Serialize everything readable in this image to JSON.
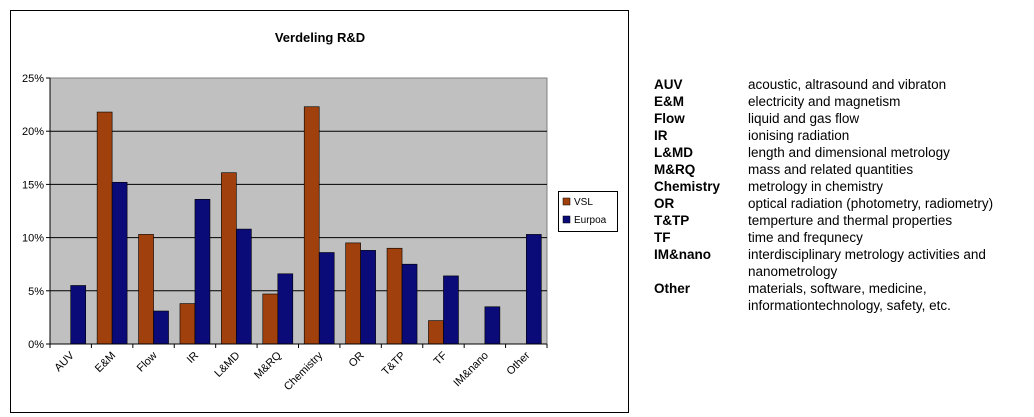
{
  "chart_data": {
    "type": "bar",
    "title": "Verdeling R&D",
    "categories": [
      "AUV",
      "E&M",
      "Flow",
      "IR",
      "L&MD",
      "M&RQ",
      "Chemistry",
      "OR",
      "T&TP",
      "TF",
      "IM&nano",
      "Other"
    ],
    "series": [
      {
        "name": "VSL",
        "color": "#a0400c",
        "values": [
          0,
          21.8,
          10.3,
          3.8,
          16.1,
          4.7,
          22.3,
          9.5,
          9.0,
          2.2,
          0,
          0
        ]
      },
      {
        "name": "Eurpoa",
        "color": "#0a0a78",
        "values": [
          5.5,
          15.2,
          3.1,
          13.6,
          10.8,
          6.6,
          8.6,
          8.8,
          7.5,
          6.4,
          3.5,
          10.3
        ]
      }
    ],
    "ylim": [
      0,
      25
    ],
    "yticks": [
      0,
      5,
      10,
      15,
      20,
      25
    ],
    "ytick_format": "percent",
    "grid": true,
    "plot_background": "#c0c0c0",
    "legend_position": "right"
  },
  "glossary": [
    {
      "abbr": "AUV",
      "desc": "acoustic, altrasound and vibraton"
    },
    {
      "abbr": "E&M",
      "desc": "electricity and magnetism"
    },
    {
      "abbr": "Flow",
      "desc": "liquid and gas flow"
    },
    {
      "abbr": "IR",
      "desc": "ionising radiation"
    },
    {
      "abbr": "L&MD",
      "desc": "length and dimensional metrology"
    },
    {
      "abbr": "M&RQ",
      "desc": "mass and related quantities"
    },
    {
      "abbr": "Chemistry",
      "desc": "metrology in chemistry"
    },
    {
      "abbr": "OR",
      "desc": "optical radiation (photometry, radiometry)"
    },
    {
      "abbr": "T&TP",
      "desc": "temperture and thermal properties"
    },
    {
      "abbr": "TF",
      "desc": "time and frequnecy"
    },
    {
      "abbr": "IM&nano",
      "desc": "interdisciplinary metrology activities and nanometrology"
    },
    {
      "abbr": "Other",
      "desc": "materials, software, medicine, informationtechnology, safety, etc."
    }
  ]
}
